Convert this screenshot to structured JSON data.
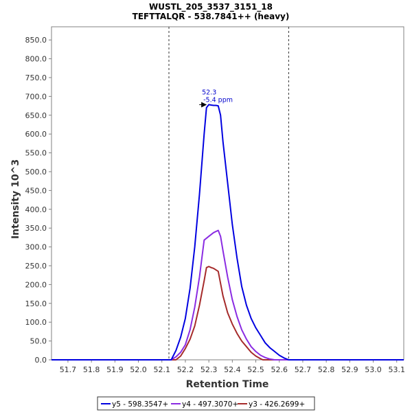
{
  "chart_data": {
    "type": "line",
    "title": "WUSTL_205_3537_3151_18",
    "subtitle": "TEFTTALQR - 538.7841++ (heavy)",
    "xlabel": "Retention Time",
    "ylabel": "Intensity 10^3",
    "xlim": [
      51.63,
      53.13
    ],
    "ylim": [
      0,
      885
    ],
    "x_ticks": [
      51.7,
      51.8,
      51.9,
      52.0,
      52.1,
      52.2,
      52.3,
      52.4,
      52.5,
      52.6,
      52.7,
      52.8,
      52.9,
      53.0,
      53.1
    ],
    "x_tick_labels": [
      "51.7",
      "51.8",
      "51.9",
      "52.0",
      "52.1",
      "52.2",
      "52.3",
      "52.4",
      "52.5",
      "52.6",
      "52.7",
      "52.8",
      "52.9",
      "53.0",
      "53.1"
    ],
    "y_ticks": [
      0,
      50,
      100,
      150,
      200,
      250,
      300,
      350,
      400,
      450,
      500,
      550,
      600,
      650,
      700,
      750,
      800,
      850
    ],
    "y_tick_labels": [
      "0.0",
      "50.0",
      "100.0",
      "150.0",
      "200.0",
      "250.0",
      "300.0",
      "350.0",
      "400.0",
      "450.0",
      "500.0",
      "550.0",
      "600.0",
      "650.0",
      "700.0",
      "750.0",
      "800.0",
      "850.0"
    ],
    "integration_bounds": [
      52.13,
      52.64
    ],
    "annotation": {
      "x": 52.3,
      "y": 678,
      "lines": [
        "52.3",
        "-5.4 ppm"
      ],
      "color": "#0000cc"
    },
    "grid": false,
    "legend_position": "bottom",
    "series": [
      {
        "name": "y5 - 598.3547+",
        "color": "#0000e0",
        "x": [
          51.63,
          52.14,
          52.16,
          52.18,
          52.2,
          52.22,
          52.24,
          52.26,
          52.28,
          52.29,
          52.3,
          52.31,
          52.32,
          52.33,
          52.34,
          52.35,
          52.36,
          52.38,
          52.4,
          52.42,
          52.44,
          52.46,
          52.48,
          52.5,
          52.52,
          52.54,
          52.56,
          52.58,
          52.6,
          52.62,
          52.64,
          53.13
        ],
        "y": [
          0,
          0,
          25,
          60,
          110,
          190,
          300,
          440,
          600,
          670,
          678,
          677,
          676,
          676,
          675,
          650,
          580,
          470,
          360,
          270,
          195,
          145,
          110,
          85,
          65,
          45,
          32,
          22,
          12,
          5,
          0,
          0
        ]
      },
      {
        "name": "y4 - 497.3070+",
        "color": "#8a2be2",
        "x": [
          51.63,
          52.14,
          52.16,
          52.18,
          52.2,
          52.22,
          52.24,
          52.26,
          52.28,
          52.3,
          52.32,
          52.34,
          52.35,
          52.36,
          52.38,
          52.4,
          52.42,
          52.44,
          52.46,
          52.48,
          52.5,
          52.52,
          52.54,
          52.56,
          52.58,
          53.13
        ],
        "y": [
          0,
          0,
          8,
          20,
          40,
          80,
          140,
          220,
          318,
          328,
          338,
          344,
          328,
          290,
          220,
          160,
          115,
          80,
          55,
          35,
          22,
          12,
          6,
          2,
          0,
          0
        ]
      },
      {
        "name": "y3 - 426.2699+",
        "color": "#a52a2a",
        "x": [
          51.63,
          52.16,
          52.18,
          52.2,
          52.22,
          52.24,
          52.26,
          52.28,
          52.29,
          52.3,
          52.31,
          52.32,
          52.34,
          52.36,
          52.38,
          52.4,
          52.42,
          52.44,
          52.46,
          52.48,
          52.5,
          52.52,
          52.53,
          53.13
        ],
        "y": [
          0,
          0,
          10,
          30,
          55,
          90,
          145,
          210,
          245,
          248,
          245,
          243,
          235,
          170,
          125,
          95,
          70,
          50,
          35,
          20,
          10,
          3,
          0,
          0
        ]
      }
    ]
  }
}
